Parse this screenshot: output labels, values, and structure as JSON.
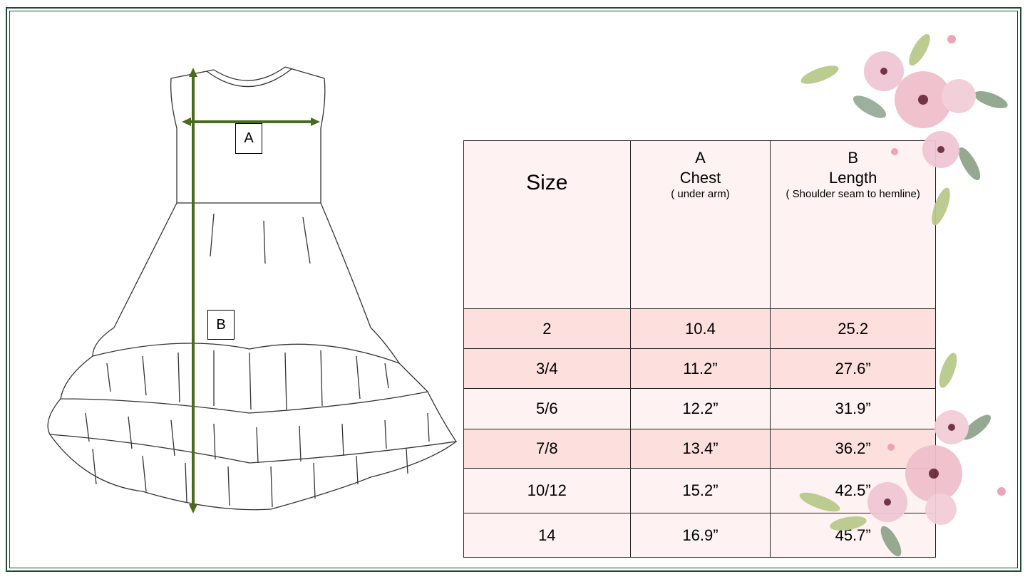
{
  "diagram": {
    "label_a": "A",
    "label_b": "B",
    "arrow_color": "#4a6a1f"
  },
  "table": {
    "headers": {
      "size": "Size",
      "chest_letter": "A",
      "chest": "Chest",
      "chest_note": "( under arm)",
      "length_letter": "B",
      "length": "Length",
      "length_note": "( Shoulder seam to hemline)"
    },
    "rows": [
      {
        "size": "2",
        "chest": "10.4",
        "length": "25.2"
      },
      {
        "size": "3/4",
        "chest": "11.2”",
        "length": "27.6”"
      },
      {
        "size": "5/6",
        "chest": "12.2”",
        "length": "31.9”"
      },
      {
        "size": "7/8",
        "chest": "13.4”",
        "length": "36.2”"
      },
      {
        "size": "10/12",
        "chest": "15.2”",
        "length": "42.5”"
      },
      {
        "size": "14",
        "chest": "16.9”",
        "length": "45.7”"
      }
    ]
  },
  "colors": {
    "frame": "#1f4a36",
    "row_dark": "#fde0de",
    "row_light": "#fef2f2"
  }
}
